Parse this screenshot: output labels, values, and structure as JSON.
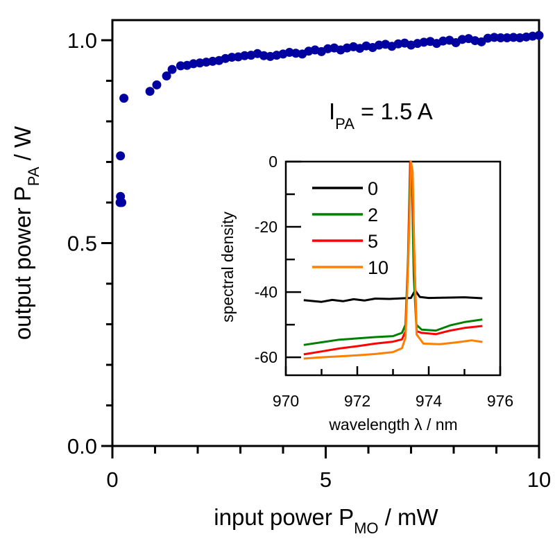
{
  "chart_data": [
    {
      "type": "scatter",
      "title": "",
      "xlabel": "input power P",
      "xlabel_sub": "MO",
      "xlabel_unit": " / mW",
      "ylabel": "output power P",
      "ylabel_sub": "PA",
      "ylabel_unit": " / W",
      "xlim": [
        0,
        10
      ],
      "ylim": [
        0,
        1.05
      ],
      "xticks": [
        0,
        5,
        10
      ],
      "xtick_labels": [
        "0",
        "5",
        "10"
      ],
      "yticks": [
        0,
        0.5,
        1.0
      ],
      "ytick_labels": [
        "0.0",
        "0.5",
        "1.0"
      ],
      "annotation": {
        "main": "I",
        "sub": "PA",
        "rest": " = 1.5 A"
      },
      "marker_color": "#0000a0",
      "points": [
        [
          0.18,
          0.6
        ],
        [
          0.22,
          0.6
        ],
        [
          0.19,
          0.615
        ],
        [
          0.19,
          0.715
        ],
        [
          0.27,
          0.857
        ],
        [
          0.88,
          0.874
        ],
        [
          1.04,
          0.89
        ],
        [
          1.27,
          0.912
        ],
        [
          1.4,
          0.928
        ],
        [
          1.6,
          0.937
        ],
        [
          1.75,
          0.938
        ],
        [
          1.9,
          0.942
        ],
        [
          2.05,
          0.944
        ],
        [
          2.2,
          0.946
        ],
        [
          2.35,
          0.948
        ],
        [
          2.5,
          0.95
        ],
        [
          2.65,
          0.955
        ],
        [
          2.8,
          0.958
        ],
        [
          2.95,
          0.959
        ],
        [
          3.1,
          0.962
        ],
        [
          3.25,
          0.963
        ],
        [
          3.4,
          0.967
        ],
        [
          3.55,
          0.962
        ],
        [
          3.7,
          0.96
        ],
        [
          3.85,
          0.963
        ],
        [
          4.0,
          0.966
        ],
        [
          4.15,
          0.97
        ],
        [
          4.3,
          0.968
        ],
        [
          4.45,
          0.966
        ],
        [
          4.6,
          0.973
        ],
        [
          4.75,
          0.976
        ],
        [
          4.9,
          0.972
        ],
        [
          5.05,
          0.979
        ],
        [
          5.2,
          0.981
        ],
        [
          5.35,
          0.976
        ],
        [
          5.5,
          0.981
        ],
        [
          5.65,
          0.984
        ],
        [
          5.8,
          0.98
        ],
        [
          5.95,
          0.986
        ],
        [
          6.1,
          0.982
        ],
        [
          6.25,
          0.988
        ],
        [
          6.4,
          0.99
        ],
        [
          6.55,
          0.985
        ],
        [
          6.7,
          0.991
        ],
        [
          6.85,
          0.993
        ],
        [
          7.0,
          0.988
        ],
        [
          7.15,
          0.992
        ],
        [
          7.3,
          0.995
        ],
        [
          7.45,
          0.997
        ],
        [
          7.6,
          0.992
        ],
        [
          7.75,
          0.998
        ],
        [
          7.9,
          1.0
        ],
        [
          8.05,
          0.994
        ],
        [
          8.2,
          1.002
        ],
        [
          8.35,
          1.004
        ],
        [
          8.5,
          0.999
        ],
        [
          8.65,
          0.996
        ],
        [
          8.8,
          1.005
        ],
        [
          8.95,
          1.007
        ],
        [
          9.1,
          1.006
        ],
        [
          9.25,
          1.006
        ],
        [
          9.4,
          1.007
        ],
        [
          9.55,
          1.006
        ],
        [
          9.7,
          1.008
        ],
        [
          9.85,
          1.01
        ],
        [
          10.0,
          1.012
        ]
      ]
    },
    {
      "type": "line",
      "title": "",
      "xlabel": "wavelength λ / nm",
      "ylabel": "spectral density",
      "xlim": [
        970,
        976
      ],
      "ylim": [
        -65.5,
        0
      ],
      "xticks": [
        970,
        972,
        974,
        976
      ],
      "xtick_labels": [
        "970",
        "972",
        "974",
        "976"
      ],
      "yticks": [
        -60,
        -40,
        -20,
        0
      ],
      "ytick_labels": [
        "-60",
        "-40",
        "-20",
        "0"
      ],
      "legend_position": "top-left",
      "series": [
        {
          "name": "0",
          "color": "#000000",
          "points": [
            [
              970.5,
              -42.5
            ],
            [
              970.8,
              -42.8
            ],
            [
              971.0,
              -43.0
            ],
            [
              971.3,
              -42.4
            ],
            [
              971.6,
              -42.8
            ],
            [
              971.9,
              -42.2
            ],
            [
              972.2,
              -42.6
            ],
            [
              972.5,
              -42.0
            ],
            [
              972.9,
              -42.1
            ],
            [
              973.3,
              -41.9
            ],
            [
              973.5,
              -41.8
            ],
            [
              973.62,
              -39.5
            ],
            [
              973.75,
              -41.5
            ],
            [
              974.0,
              -41.8
            ],
            [
              974.5,
              -41.7
            ],
            [
              975.0,
              -41.6
            ],
            [
              975.5,
              -41.9
            ]
          ]
        },
        {
          "name": "2",
          "color": "#008000",
          "points": [
            [
              970.5,
              -56.2
            ],
            [
              971.0,
              -55.4
            ],
            [
              971.5,
              -54.6
            ],
            [
              972.0,
              -54.2
            ],
            [
              972.5,
              -53.8
            ],
            [
              973.0,
              -53.5
            ],
            [
              973.25,
              -52.5
            ],
            [
              973.35,
              -50.0
            ],
            [
              973.42,
              -30.0
            ],
            [
              973.48,
              0
            ],
            [
              973.53,
              -5.0
            ],
            [
              973.58,
              -35.0
            ],
            [
              973.65,
              -50.0
            ],
            [
              973.8,
              -51.5
            ],
            [
              974.2,
              -51.8
            ],
            [
              974.6,
              -50.2
            ],
            [
              975.0,
              -49.2
            ],
            [
              975.5,
              -48.4
            ]
          ]
        },
        {
          "name": "5",
          "color": "#ff0000",
          "points": [
            [
              970.5,
              -59.1
            ],
            [
              971.0,
              -58.2
            ],
            [
              971.5,
              -57.3
            ],
            [
              972.0,
              -56.6
            ],
            [
              972.5,
              -55.8
            ],
            [
              973.0,
              -55.2
            ],
            [
              973.25,
              -54.5
            ],
            [
              973.35,
              -52.0
            ],
            [
              973.42,
              -32.0
            ],
            [
              973.49,
              0
            ],
            [
              973.54,
              -5.0
            ],
            [
              973.6,
              -30.0
            ],
            [
              973.66,
              -52.0
            ],
            [
              973.8,
              -52.5
            ],
            [
              974.2,
              -52.9
            ],
            [
              974.6,
              -51.8
            ],
            [
              975.0,
              -51.0
            ],
            [
              975.5,
              -50.4
            ]
          ]
        },
        {
          "name": "10",
          "color": "#ff8000",
          "points": [
            [
              970.5,
              -60.4
            ],
            [
              971.0,
              -60.0
            ],
            [
              971.5,
              -59.7
            ],
            [
              972.0,
              -59.4
            ],
            [
              972.5,
              -59.0
            ],
            [
              973.0,
              -58.4
            ],
            [
              973.25,
              -57.2
            ],
            [
              973.35,
              -54.0
            ],
            [
              973.43,
              -30.0
            ],
            [
              973.5,
              0
            ],
            [
              973.55,
              -3.0
            ],
            [
              973.6,
              -30.0
            ],
            [
              973.66,
              -53.0
            ],
            [
              973.85,
              -55.8
            ],
            [
              974.3,
              -56.0
            ],
            [
              974.8,
              -55.4
            ],
            [
              975.2,
              -54.8
            ],
            [
              975.5,
              -55.3
            ]
          ]
        }
      ]
    }
  ]
}
